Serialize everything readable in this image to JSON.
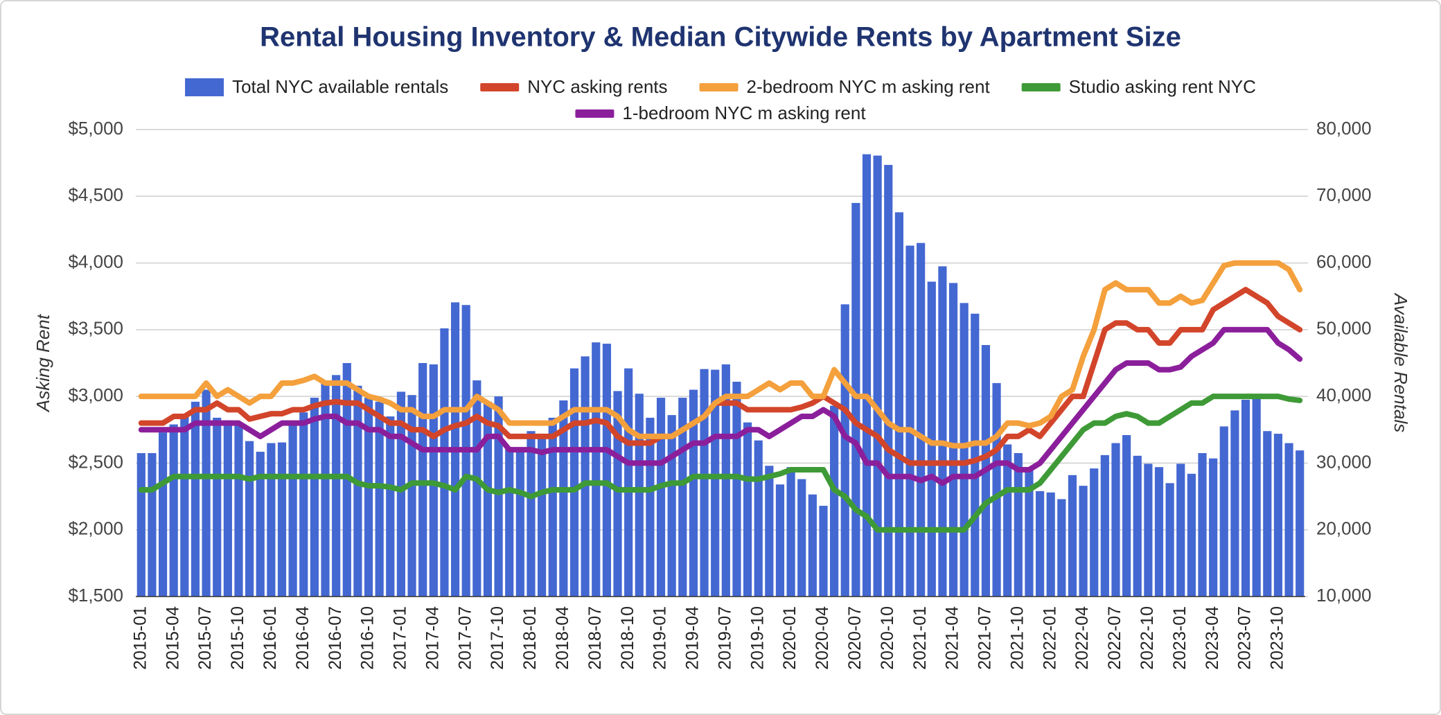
{
  "chart_data": {
    "type": "bar-line",
    "title": "Rental Housing Inventory & Median Citywide Rents by Apartment Size",
    "y_label": "Asking Rent",
    "y2_label": "Available Rentals",
    "legend_position": "top",
    "grid": true,
    "categories": [
      "2015-01",
      null,
      null,
      "2015-04",
      null,
      null,
      "2015-07",
      null,
      null,
      "2015-10",
      null,
      null,
      "2016-01",
      null,
      null,
      "2016-04",
      null,
      null,
      "2016-07",
      null,
      null,
      "2016-10",
      null,
      null,
      "2017-01",
      null,
      null,
      "2017-04",
      null,
      null,
      "2017-07",
      null,
      null,
      "2017-10",
      null,
      null,
      "2018-01",
      null,
      null,
      "2018-04",
      null,
      null,
      "2018-07",
      null,
      null,
      "2018-10",
      null,
      null,
      "2019-01",
      null,
      null,
      "2019-04",
      null,
      null,
      "2019-07",
      null,
      null,
      "2019-10",
      null,
      null,
      "2020-01",
      null,
      null,
      "2020-04",
      null,
      null,
      "2020-07",
      null,
      null,
      "2020-10",
      null,
      null,
      "2021-01",
      null,
      null,
      "2021-04",
      null,
      null,
      "2021-07",
      null,
      null,
      "2021-10",
      null,
      null,
      "2022-01",
      null,
      null,
      "2022-04",
      null,
      null,
      "2022-07",
      null,
      null,
      "2022-10",
      null,
      null,
      "2023-01",
      null,
      null,
      "2023-04",
      null,
      null,
      "2023-07",
      null,
      null,
      "2023-10",
      null,
      null
    ],
    "ylim": [
      1500,
      5000
    ],
    "yticks": [
      {
        "value": 1500,
        "label": "$1,500"
      },
      {
        "value": 2000,
        "label": "$2,000"
      },
      {
        "value": 2500,
        "label": "$2,500"
      },
      {
        "value": 3000,
        "label": "$3,000"
      },
      {
        "value": 3500,
        "label": "$3,500"
      },
      {
        "value": 4000,
        "label": "$4,000"
      },
      {
        "value": 4500,
        "label": "$4,500"
      },
      {
        "value": 5000,
        "label": "$5,000"
      }
    ],
    "y2lim": [
      10000,
      80000
    ],
    "y2ticks": [
      {
        "value": 10000,
        "label": "10,000"
      },
      {
        "value": 20000,
        "label": "20,000"
      },
      {
        "value": 30000,
        "label": "30,000"
      },
      {
        "value": 40000,
        "label": "40,000"
      },
      {
        "value": 50000,
        "label": "50,000"
      },
      {
        "value": 60000,
        "label": "60,000"
      },
      {
        "value": 70000,
        "label": "70,000"
      },
      {
        "value": 80000,
        "label": "80,000"
      }
    ],
    "series": [
      {
        "name": "Total NYC available rentals",
        "type": "bar",
        "axis": "y2",
        "color": "#4468d2",
        "values": [
          31500,
          31500,
          34600,
          35800,
          37000,
          39200,
          41000,
          36800,
          36400,
          36000,
          33300,
          31700,
          33000,
          33100,
          35600,
          37600,
          39800,
          42000,
          43200,
          45000,
          41600,
          39800,
          39200,
          37000,
          40700,
          40200,
          45000,
          44800,
          50200,
          54100,
          53700,
          42400,
          39200,
          40000,
          32400,
          32000,
          34800,
          34000,
          36800,
          39400,
          44200,
          46000,
          48100,
          47900,
          40800,
          44200,
          40400,
          36800,
          39800,
          37200,
          39800,
          41000,
          44100,
          44000,
          44800,
          42200,
          36100,
          33400,
          29600,
          26800,
          29400,
          27600,
          25300,
          23600,
          38600,
          53800,
          69000,
          76300,
          76100,
          74700,
          67600,
          62600,
          63000,
          57200,
          59500,
          57000,
          54000,
          52400,
          47700,
          42000,
          32800,
          31500,
          29000,
          25800,
          25600,
          24600,
          28200,
          26600,
          29200,
          31200,
          33000,
          34200,
          31100,
          29900,
          29400,
          27000,
          29900,
          28400,
          31500,
          30700,
          35500,
          37900,
          39500,
          40000,
          34800,
          34400,
          33000,
          31900
        ]
      },
      {
        "name": "NYC asking rents",
        "type": "line",
        "axis": "y",
        "color": "#d2452a",
        "values": [
          2800,
          2800,
          2800,
          2850,
          2850,
          2900,
          2900,
          2950,
          2900,
          2900,
          2830,
          2850,
          2870,
          2870,
          2900,
          2900,
          2930,
          2950,
          2960,
          2950,
          2950,
          2900,
          2850,
          2800,
          2800,
          2750,
          2750,
          2700,
          2750,
          2780,
          2800,
          2850,
          2800,
          2780,
          2700,
          2700,
          2700,
          2700,
          2700,
          2750,
          2800,
          2800,
          2820,
          2800,
          2700,
          2650,
          2650,
          2650,
          2700,
          2700,
          2750,
          2800,
          2850,
          2950,
          2950,
          2950,
          2900,
          2900,
          2900,
          2900,
          2900,
          2920,
          2950,
          3000,
          2950,
          2900,
          2800,
          2750,
          2700,
          2600,
          2550,
          2500,
          2500,
          2500,
          2500,
          2500,
          2500,
          2520,
          2550,
          2600,
          2700,
          2700,
          2750,
          2700,
          2800,
          2900,
          3000,
          3000,
          3250,
          3500,
          3550,
          3550,
          3500,
          3500,
          3400,
          3400,
          3500,
          3500,
          3500,
          3650,
          3700,
          3750,
          3800,
          3750,
          3700,
          3600,
          3550,
          3500
        ]
      },
      {
        "name": "2-bedroom NYC m asking rent",
        "type": "line",
        "axis": "y",
        "color": "#f4a03c",
        "values": [
          3000,
          3000,
          3000,
          3000,
          3000,
          3000,
          3100,
          3000,
          3050,
          3000,
          2950,
          3000,
          3000,
          3100,
          3100,
          3120,
          3150,
          3100,
          3100,
          3100,
          3050,
          3000,
          2980,
          2950,
          2900,
          2900,
          2850,
          2850,
          2900,
          2900,
          2900,
          3000,
          2950,
          2900,
          2800,
          2800,
          2800,
          2800,
          2800,
          2850,
          2900,
          2900,
          2900,
          2900,
          2850,
          2750,
          2700,
          2700,
          2700,
          2700,
          2750,
          2800,
          2850,
          2950,
          3000,
          3000,
          3000,
          3050,
          3100,
          3050,
          3100,
          3100,
          3000,
          3000,
          3200,
          3100,
          3000,
          3000,
          2900,
          2800,
          2750,
          2750,
          2700,
          2650,
          2650,
          2630,
          2630,
          2650,
          2650,
          2700,
          2800,
          2800,
          2780,
          2800,
          2850,
          3000,
          3050,
          3300,
          3500,
          3800,
          3850,
          3800,
          3800,
          3800,
          3700,
          3700,
          3750,
          3700,
          3720,
          3850,
          3980,
          4000,
          4000,
          4000,
          4000,
          4000,
          3950,
          3800
        ]
      },
      {
        "name": "Studio asking rent NYC",
        "type": "line",
        "axis": "y",
        "color": "#3e9a36",
        "values": [
          2300,
          2300,
          2350,
          2400,
          2400,
          2400,
          2400,
          2400,
          2400,
          2400,
          2380,
          2400,
          2400,
          2400,
          2400,
          2400,
          2400,
          2400,
          2400,
          2400,
          2350,
          2330,
          2330,
          2320,
          2300,
          2350,
          2350,
          2350,
          2330,
          2300,
          2400,
          2380,
          2300,
          2280,
          2300,
          2280,
          2250,
          2280,
          2300,
          2300,
          2300,
          2350,
          2350,
          2350,
          2300,
          2300,
          2300,
          2300,
          2330,
          2350,
          2350,
          2400,
          2400,
          2400,
          2400,
          2400,
          2380,
          2380,
          2400,
          2420,
          2450,
          2450,
          2450,
          2450,
          2300,
          2250,
          2150,
          2100,
          2000,
          2000,
          2000,
          2000,
          2000,
          2000,
          2000,
          2000,
          2000,
          2100,
          2200,
          2250,
          2300,
          2300,
          2300,
          2350,
          2450,
          2550,
          2650,
          2750,
          2800,
          2800,
          2850,
          2870,
          2850,
          2800,
          2800,
          2850,
          2900,
          2950,
          2950,
          3000,
          3000,
          3000,
          3000,
          3000,
          3000,
          3000,
          2980,
          2970
        ]
      },
      {
        "name": "1-bedroom NYC m asking rent",
        "type": "line",
        "axis": "y",
        "color": "#8b1f9b",
        "values": [
          2750,
          2750,
          2750,
          2750,
          2750,
          2800,
          2800,
          2800,
          2800,
          2800,
          2750,
          2700,
          2750,
          2800,
          2800,
          2800,
          2830,
          2850,
          2850,
          2800,
          2800,
          2750,
          2750,
          2700,
          2700,
          2650,
          2600,
          2600,
          2600,
          2600,
          2600,
          2600,
          2700,
          2700,
          2600,
          2600,
          2600,
          2580,
          2600,
          2600,
          2600,
          2600,
          2600,
          2600,
          2550,
          2500,
          2500,
          2500,
          2500,
          2550,
          2600,
          2650,
          2650,
          2700,
          2700,
          2700,
          2750,
          2750,
          2700,
          2750,
          2800,
          2850,
          2850,
          2900,
          2850,
          2700,
          2650,
          2500,
          2500,
          2400,
          2400,
          2400,
          2370,
          2400,
          2350,
          2400,
          2400,
          2400,
          2450,
          2500,
          2500,
          2450,
          2450,
          2500,
          2600,
          2700,
          2800,
          2900,
          3000,
          3100,
          3200,
          3250,
          3250,
          3250,
          3200,
          3200,
          3220,
          3300,
          3350,
          3400,
          3500,
          3500,
          3500,
          3500,
          3500,
          3400,
          3350,
          3280
        ]
      }
    ]
  }
}
